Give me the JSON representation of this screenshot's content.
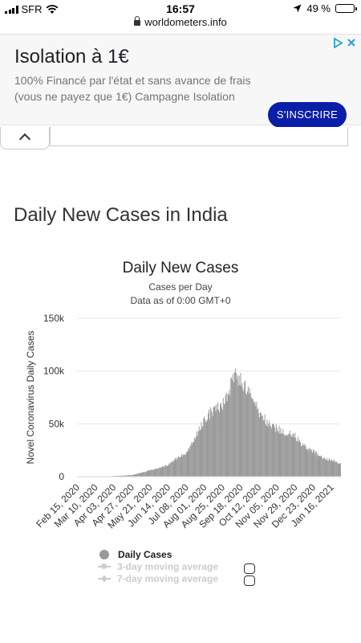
{
  "status_bar": {
    "carrier": "SFR",
    "time": "16:57",
    "battery": "49 %",
    "battery_level": 0.49
  },
  "browser": {
    "url": "worldometers.info"
  },
  "ad": {
    "title": "Isolation à 1€",
    "body": "100% Financé par l'état et sans avance de frais (vous ne payez que 1€) Campagne Isolation",
    "cta": "S'INSCRIRE",
    "cta_color": "#0a1ea8"
  },
  "section": {
    "title": "Daily New Cases in India"
  },
  "chart_data": {
    "type": "bar",
    "title": "Daily New Cases",
    "subtitle": "Cases per Day",
    "subtitle2": "Data as of 0:00 GMT+0",
    "ylabel": "Novel Coronavirus Daily Cases",
    "xlabel": "",
    "ylim": [
      0,
      150000
    ],
    "y_ticks": [
      "0",
      "50k",
      "100k",
      "150k"
    ],
    "y_tick_values": [
      0,
      50000,
      100000,
      150000
    ],
    "x_ticks": [
      "Feb 15, 2020",
      "Mar 10, 2020",
      "Apr 03, 2020",
      "Apr 27, 2020",
      "May 21, 2020",
      "Jun 14, 2020",
      "Jul 08, 2020",
      "Aug 01, 2020",
      "Aug 25, 2020",
      "Sep 18, 2020",
      "Oct 12, 2020",
      "Nov 05, 2020",
      "Nov 29, 2020",
      "Dec 23, 2020",
      "Jan 16, 2021"
    ],
    "bar_color": "#999999",
    "grid": true,
    "series": [
      {
        "name": "Daily Cases",
        "points": [
          [
            "Feb 15, 2020",
            0
          ],
          [
            "Mar 10, 2020",
            10
          ],
          [
            "Mar 25, 2020",
            100
          ],
          [
            "Apr 03, 2020",
            600
          ],
          [
            "Apr 15, 2020",
            1000
          ],
          [
            "Apr 27, 2020",
            1500
          ],
          [
            "May 10, 2020",
            3800
          ],
          [
            "May 21, 2020",
            6000
          ],
          [
            "Jun 01, 2020",
            8000
          ],
          [
            "Jun 14, 2020",
            11500
          ],
          [
            "Jun 25, 2020",
            17000
          ],
          [
            "Jul 08, 2020",
            23000
          ],
          [
            "Jul 20, 2020",
            37000
          ],
          [
            "Aug 01, 2020",
            55000
          ],
          [
            "Aug 10, 2020",
            62000
          ],
          [
            "Aug 25, 2020",
            68000
          ],
          [
            "Sep 05, 2020",
            87000
          ],
          [
            "Sep 11, 2020",
            96000
          ],
          [
            "Sep 18, 2020",
            93000
          ],
          [
            "Sep 28, 2020",
            80000
          ],
          [
            "Oct 05, 2020",
            74000
          ],
          [
            "Oct 12, 2020",
            62000
          ],
          [
            "Oct 25, 2020",
            50000
          ],
          [
            "Nov 05, 2020",
            46000
          ],
          [
            "Nov 15, 2020",
            42000
          ],
          [
            "Nov 29, 2020",
            39000
          ],
          [
            "Dec 10, 2020",
            30000
          ],
          [
            "Dec 23, 2020",
            24000
          ],
          [
            "Jan 05, 2021",
            18000
          ],
          [
            "Jan 16, 2021",
            16000
          ],
          [
            "Jan 28, 2021",
            12000
          ]
        ]
      }
    ],
    "legend": [
      {
        "name": "Daily Cases",
        "enabled": true
      },
      {
        "name": "3-day moving average",
        "enabled": false
      },
      {
        "name": "7-day moving average",
        "enabled": false
      }
    ]
  }
}
